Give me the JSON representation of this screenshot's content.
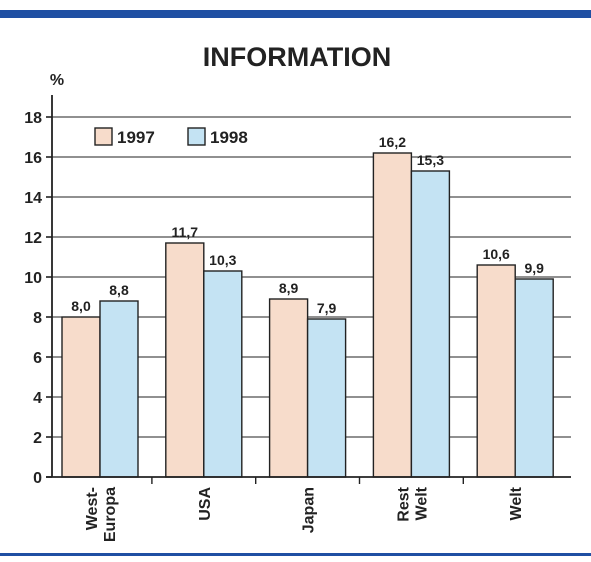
{
  "chart_data": {
    "type": "bar",
    "title": "INFORMATION",
    "ylabel": "%",
    "xlabel": "",
    "ylim": [
      0,
      18
    ],
    "yticks": [
      "0",
      "2",
      "4",
      "6",
      "8",
      "10",
      "12",
      "14",
      "16",
      "18"
    ],
    "grid": true,
    "legend_position": "top-left",
    "categories": [
      [
        "West-",
        "Europa"
      ],
      [
        "USA"
      ],
      [
        "Japan"
      ],
      [
        "Rest",
        "Welt"
      ],
      [
        "Welt"
      ]
    ],
    "series": [
      {
        "name": "1997",
        "color": "#f7dccb",
        "values": [
          8.0,
          11.7,
          8.9,
          16.2,
          10.6
        ],
        "labels": [
          "8,0",
          "11,7",
          "8,9",
          "16,2",
          "10,6"
        ]
      },
      {
        "name": "1998",
        "color": "#c4e3f3",
        "values": [
          8.8,
          10.3,
          7.9,
          15.3,
          9.9
        ],
        "labels": [
          "8,8",
          "10,3",
          "7,9",
          "15,3",
          "9,9"
        ]
      }
    ],
    "colors": {
      "frame_rule": "#1f4fa3",
      "bar_stroke": "#222222",
      "grid": "#222222"
    }
  }
}
